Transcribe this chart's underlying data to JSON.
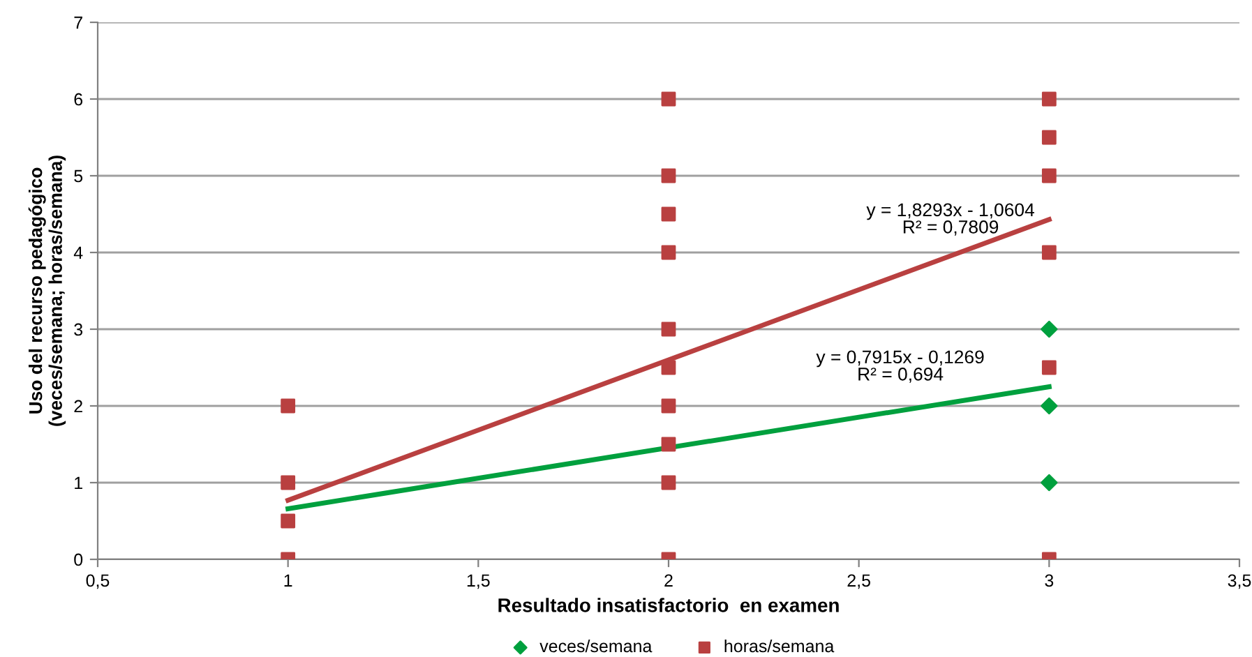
{
  "chart_data": {
    "type": "scatter",
    "xlabel": "Resultado insatisfactorio  en examen",
    "ylabel": "Uso del recurso pedagógico\n(veces/semana; horas/semana)",
    "xlim": [
      0.5,
      3.5
    ],
    "xticks": [
      {
        "value": 0.5,
        "label": "0,5"
      },
      1,
      {
        "value": 1.5,
        "label": "1,5"
      },
      2,
      {
        "value": 2.5,
        "label": "2,5"
      },
      3,
      {
        "value": 3.5,
        "label": "3,5"
      }
    ],
    "ylim": [
      0,
      7
    ],
    "yticks": [
      0,
      1,
      2,
      3,
      4,
      5,
      6,
      7
    ],
    "grid": "y",
    "legend": "bottom",
    "series": [
      {
        "name": "veces/semana",
        "color": "#00a03e",
        "marker": "diamond",
        "x": [
          3,
          3,
          3
        ],
        "values": [
          1,
          2,
          3
        ]
      },
      {
        "name": "horas/semana",
        "color": "#b94040",
        "marker": "square",
        "x": [
          1,
          1,
          1,
          1,
          2,
          2,
          2,
          2,
          2,
          2,
          2,
          2,
          2,
          2,
          3,
          3,
          3,
          3,
          3,
          3
        ],
        "values": [
          0,
          0.5,
          1,
          2,
          0,
          1,
          1.5,
          2,
          2.5,
          3,
          4,
          4.5,
          5,
          6,
          0,
          2.5,
          4,
          5,
          5.5,
          6
        ]
      },
      {
        "type": "line",
        "color": "#b94040",
        "marker": "none",
        "x": [
          1,
          3
        ],
        "values": [
          0.77,
          4.43
        ]
      },
      {
        "type": "line",
        "color": "#00a03e",
        "marker": "none",
        "x": [
          1,
          3
        ],
        "values": [
          0.66,
          2.25
        ]
      }
    ],
    "annotations": [
      "y = 1,8293x - 1,0604\nR² = 0,7809",
      "y = 0,7915x - 0,1269\nR² = 0,694"
    ]
  }
}
